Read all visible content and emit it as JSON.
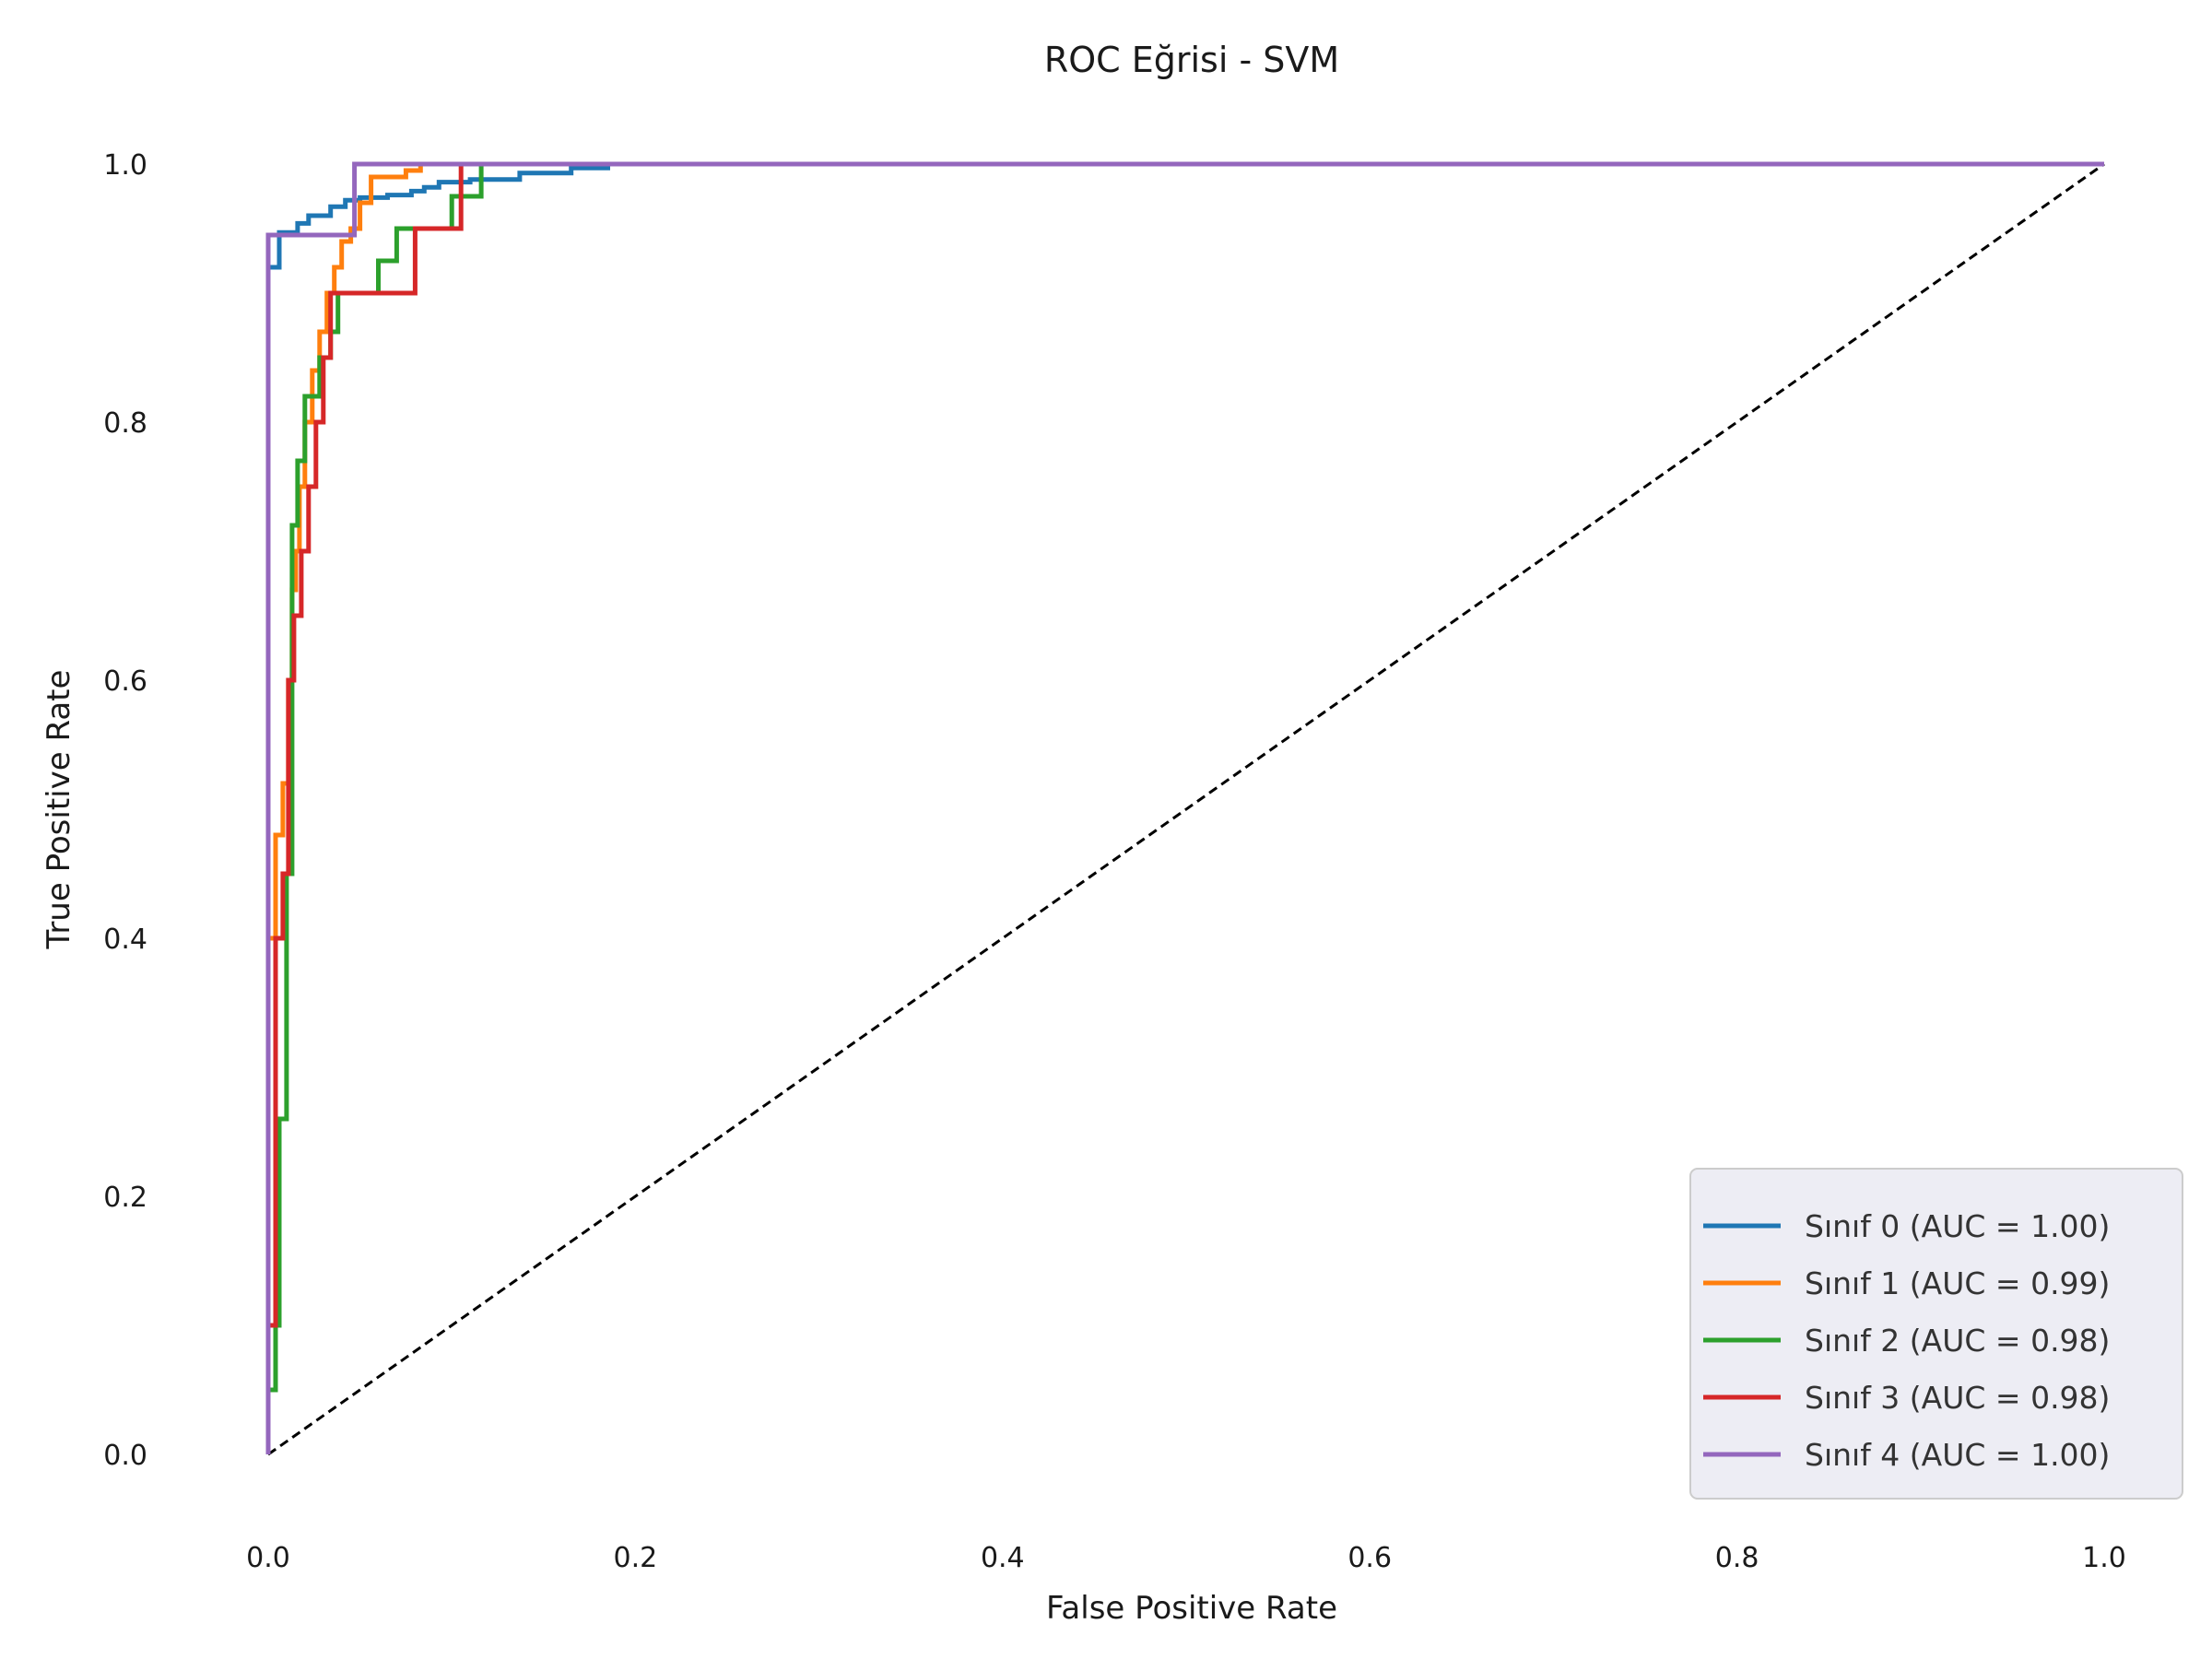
{
  "chart_data": {
    "type": "line",
    "title": "ROC Eğrisi - SVM",
    "xlabel": "False Positive Rate",
    "ylabel": "True Positive Rate",
    "xlim": [
      -0.05,
      1.05
    ],
    "ylim": [
      -0.05,
      1.05
    ],
    "xticks": [
      0.0,
      0.2,
      0.4,
      0.6,
      0.8,
      1.0
    ],
    "xtick_labels": [
      "0.0",
      "0.2",
      "0.4",
      "0.6",
      "0.8",
      "1.0"
    ],
    "yticks": [
      0.0,
      0.2,
      0.4,
      0.6,
      0.8,
      1.0
    ],
    "ytick_labels": [
      "0.0",
      "0.2",
      "0.4",
      "0.6",
      "0.8",
      "1.0"
    ],
    "grid": false,
    "legend_position": "lower-right",
    "diagonal": {
      "x": [
        0,
        1
      ],
      "y": [
        0,
        1
      ],
      "color": "#000000",
      "dash": true
    },
    "series": [
      {
        "name": "Sınıf 0 (AUC = 1.00)",
        "color": "#1f77b4",
        "x": [
          0.0,
          0.0,
          0.006,
          0.006,
          0.016,
          0.016,
          0.022,
          0.022,
          0.034,
          0.034,
          0.042,
          0.042,
          0.05,
          0.05,
          0.065,
          0.065,
          0.078,
          0.078,
          0.085,
          0.085,
          0.093,
          0.093,
          0.11,
          0.11,
          0.137,
          0.137,
          0.165,
          0.165,
          0.185,
          0.185,
          1.0
        ],
        "y": [
          0.0,
          0.92,
          0.92,
          0.947,
          0.947,
          0.954,
          0.954,
          0.96,
          0.96,
          0.967,
          0.967,
          0.972,
          0.972,
          0.974,
          0.974,
          0.976,
          0.976,
          0.979,
          0.979,
          0.982,
          0.982,
          0.986,
          0.986,
          0.988,
          0.988,
          0.993,
          0.993,
          0.997,
          0.997,
          1.0,
          1.0
        ]
      },
      {
        "name": "Sınıf 1 (AUC = 0.99)",
        "color": "#ff7f0e",
        "x": [
          0.0,
          0.0,
          0.004,
          0.004,
          0.008,
          0.008,
          0.011,
          0.011,
          0.013,
          0.013,
          0.015,
          0.015,
          0.017,
          0.017,
          0.02,
          0.02,
          0.024,
          0.024,
          0.028,
          0.028,
          0.032,
          0.032,
          0.036,
          0.036,
          0.04,
          0.04,
          0.045,
          0.045,
          0.05,
          0.05,
          0.056,
          0.056,
          0.062,
          0.062,
          0.075,
          0.075,
          0.083,
          0.083,
          1.0
        ],
        "y": [
          0.0,
          0.4,
          0.4,
          0.48,
          0.48,
          0.52,
          0.52,
          0.6,
          0.6,
          0.67,
          0.67,
          0.7,
          0.7,
          0.75,
          0.75,
          0.8,
          0.8,
          0.84,
          0.84,
          0.87,
          0.87,
          0.9,
          0.9,
          0.92,
          0.92,
          0.94,
          0.94,
          0.95,
          0.95,
          0.97,
          0.97,
          0.99,
          0.99,
          0.99,
          0.99,
          0.995,
          0.995,
          1.0,
          1.0
        ]
      },
      {
        "name": "Sınıf 2 (AUC = 0.98)",
        "color": "#2ca02c",
        "x": [
          0.0,
          0.0,
          0.004,
          0.004,
          0.006,
          0.006,
          0.01,
          0.01,
          0.013,
          0.013,
          0.016,
          0.016,
          0.02,
          0.02,
          0.028,
          0.028,
          0.034,
          0.034,
          0.038,
          0.038,
          0.048,
          0.048,
          0.06,
          0.06,
          0.07,
          0.07,
          0.08,
          0.08,
          0.09,
          0.09,
          0.1,
          0.1,
          0.116,
          0.116,
          1.0
        ],
        "y": [
          0.0,
          0.05,
          0.05,
          0.1,
          0.1,
          0.26,
          0.26,
          0.45,
          0.45,
          0.72,
          0.72,
          0.77,
          0.77,
          0.82,
          0.82,
          0.85,
          0.85,
          0.87,
          0.87,
          0.9,
          0.9,
          0.9,
          0.9,
          0.925,
          0.925,
          0.95,
          0.95,
          0.95,
          0.95,
          0.95,
          0.95,
          0.975,
          0.975,
          1.0,
          1.0
        ]
      },
      {
        "name": "Sınıf 3 (AUC = 0.98)",
        "color": "#d62728",
        "x": [
          0.0,
          0.0,
          0.004,
          0.004,
          0.008,
          0.008,
          0.011,
          0.011,
          0.014,
          0.014,
          0.018,
          0.018,
          0.022,
          0.022,
          0.026,
          0.026,
          0.03,
          0.03,
          0.034,
          0.034,
          0.038,
          0.038,
          0.08,
          0.08,
          0.105,
          0.105,
          1.0
        ],
        "y": [
          0.0,
          0.1,
          0.1,
          0.4,
          0.4,
          0.45,
          0.45,
          0.6,
          0.6,
          0.65,
          0.65,
          0.7,
          0.7,
          0.75,
          0.75,
          0.8,
          0.8,
          0.85,
          0.85,
          0.9,
          0.9,
          0.9,
          0.9,
          0.95,
          0.95,
          1.0,
          1.0
        ]
      },
      {
        "name": "Sınıf 4 (AUC = 1.00)",
        "color": "#9467bd",
        "x": [
          0.0,
          0.0,
          0.047,
          0.047,
          1.0
        ],
        "y": [
          0.0,
          0.945,
          0.945,
          1.0,
          1.0
        ]
      }
    ]
  }
}
